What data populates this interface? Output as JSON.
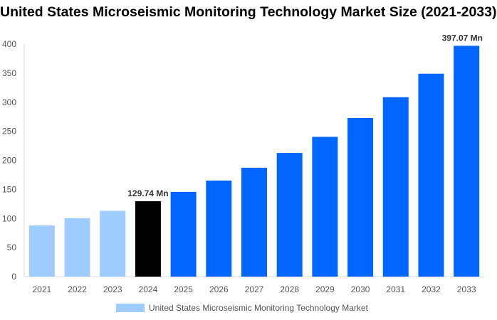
{
  "chart_data": {
    "type": "bar",
    "title": "United States Microseismic Monitoring Technology Market Size (2021-2033)",
    "categories": [
      "2021",
      "2022",
      "2023",
      "2024",
      "2025",
      "2026",
      "2027",
      "2028",
      "2029",
      "2030",
      "2031",
      "2032",
      "2033"
    ],
    "series": [
      {
        "name": "United States Microseismic Monitoring Technology Market",
        "values": [
          88,
          100.6,
          113.3,
          129.74,
          145.7,
          165.3,
          187.3,
          212.7,
          240.5,
          272.8,
          308.7,
          349,
          397.07
        ]
      }
    ],
    "data_labels": [
      {
        "category": "2024",
        "text": "129.74 Mn"
      },
      {
        "category": "2033",
        "text": "397.07 Mn"
      }
    ],
    "ylim": [
      0,
      400
    ],
    "yticks": [
      0,
      50,
      100,
      150,
      200,
      250,
      300,
      350,
      400
    ],
    "grid": false,
    "legend": "bottom",
    "colors": {
      "historical": "#a0cdff",
      "base_year": "#000000",
      "forecast": "#0066ff"
    }
  }
}
